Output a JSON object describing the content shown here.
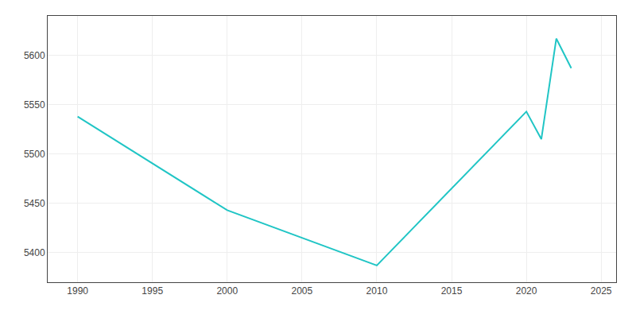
{
  "chart_data": {
    "type": "line",
    "x": [
      1990,
      2000,
      2010,
      2020,
      2021,
      2022,
      2023
    ],
    "values": [
      5538,
      5443,
      5387,
      5543,
      5515,
      5617,
      5587
    ],
    "color": "#20c5c5",
    "xlim": [
      1988,
      2026
    ],
    "ylim": [
      5370,
      5640
    ],
    "xticks": [
      1990,
      1995,
      2000,
      2005,
      2010,
      2015,
      2020,
      2025
    ],
    "yticks": [
      5400,
      5450,
      5500,
      5550,
      5600
    ],
    "grid": true
  }
}
